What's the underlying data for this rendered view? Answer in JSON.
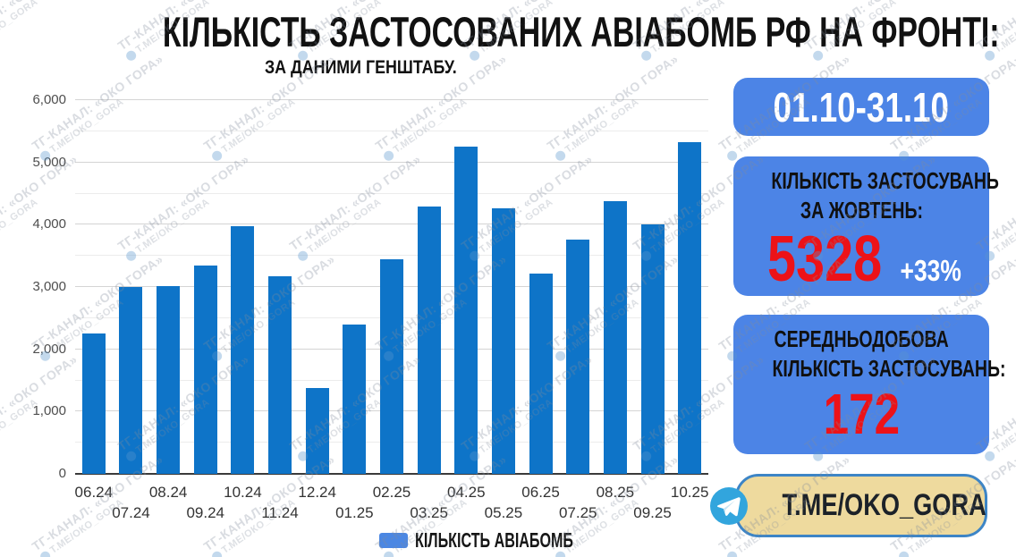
{
  "header": {
    "title": "КІЛЬКІСТЬ ЗАСТОСОВАНИХ АВІАБОМБ РФ НА ФРОНТІ:",
    "subtitle": "ЗА ДАНИМИ ГЕНШТАБУ."
  },
  "chart_data": {
    "type": "bar",
    "title": "КІЛЬКІСТЬ ЗАСТОСОВАНИХ АВІАБОМБ РФ НА ФРОНТІ: ЗА ДАНИМИ ГЕНШТАБУ.",
    "categories": [
      "06.24",
      "07.24",
      "08.24",
      "09.24",
      "10.24",
      "11.24",
      "12.24",
      "01.25",
      "02.25",
      "03.25",
      "04.25",
      "05.25",
      "06.25",
      "07.25",
      "08.25",
      "09.25",
      "10.25"
    ],
    "values": [
      2250,
      3000,
      3020,
      3350,
      3975,
      3175,
      1380,
      2400,
      3450,
      4290,
      5260,
      4260,
      3210,
      3760,
      4380,
      4000,
      5328
    ],
    "series_name": "КІЛЬКІСТЬ АВІАБОМБ",
    "xlabel": "",
    "ylabel": "",
    "ylim": [
      0,
      6000
    ],
    "ytick_step": 1000,
    "ytick_minor_step": 500,
    "ytick_labels": [
      "0",
      "1,000",
      "2,000",
      "3,000",
      "4,000",
      "5,000",
      "6,000"
    ],
    "grid": "on",
    "legend_position": "bottom",
    "bar_color": "#0e74c8",
    "legend_swatch_color": "#4b87e3"
  },
  "panels": {
    "date_range": "01.10-31.10",
    "monthly": {
      "heading_line1": "КІЛЬКІСТЬ ЗАСТОСУВАНЬ",
      "heading_line2": "ЗА ЖОВТЕНЬ:",
      "value": "5328",
      "delta": "+33%"
    },
    "daily": {
      "heading_line1": "СЕРЕДНЬОДОБОВА",
      "heading_line2": "КІЛЬКІСТЬ ЗАСТОСУВАНЬ:",
      "value": "172"
    },
    "telegram": {
      "label": "T.ME/OKO_GORA"
    }
  },
  "watermark": {
    "line1": "ТГ-КАНАЛ: «ОКО ГОРА»",
    "line2": "Т.МЕ/ОКО_GORA"
  },
  "colors": {
    "bar_blue": "#0e74c8",
    "panel_blue": "#4c84e6",
    "accent_red": "#ec1218",
    "tg_background": "#eeda9e",
    "tg_border": "#3d85c6",
    "tg_icon_blue": "#32a5dd"
  }
}
